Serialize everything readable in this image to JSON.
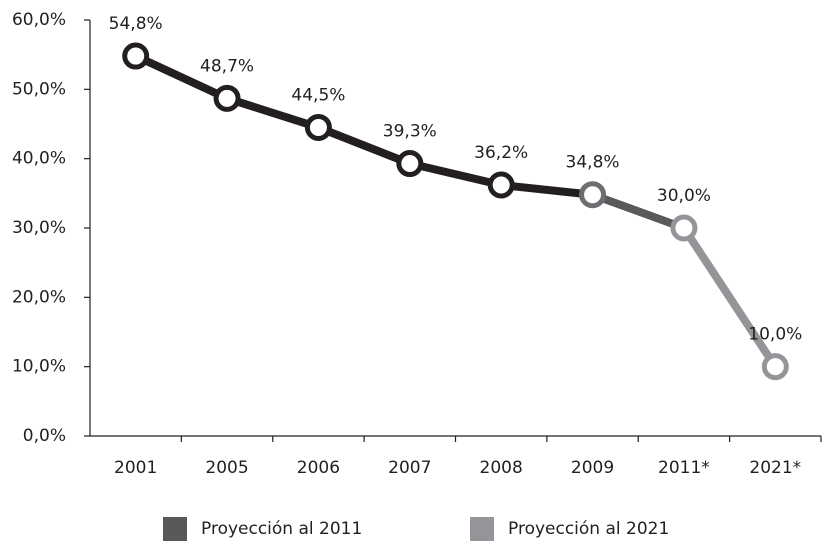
{
  "chart_data": {
    "type": "line",
    "categories": [
      "2001",
      "2005",
      "2006",
      "2007",
      "2008",
      "2009",
      "2011*",
      "2021*"
    ],
    "values": [
      54.8,
      48.7,
      44.5,
      39.3,
      36.2,
      34.8,
      30.0,
      10.0
    ],
    "value_labels": [
      "54,8%",
      "48,7%",
      "44,5%",
      "39,3%",
      "36,2%",
      "34,8%",
      "30,0%",
      "10,0%"
    ],
    "segment_colors": [
      "#231f20",
      "#231f20",
      "#231f20",
      "#231f20",
      "#231f20",
      "#58595b",
      "#939598"
    ],
    "marker_colors": [
      "#231f20",
      "#231f20",
      "#231f20",
      "#231f20",
      "#231f20",
      "#6d6e71",
      "#939598",
      "#939598"
    ],
    "legend": [
      {
        "name": "Proyección al 2011",
        "color": "#58595b"
      },
      {
        "name": "Proyección al 2021",
        "color": "#939598"
      }
    ],
    "ylim": [
      0,
      60
    ],
    "yticks": [
      {
        "value": 0,
        "label": "0,0%"
      },
      {
        "value": 10,
        "label": "10,0%"
      },
      {
        "value": 20,
        "label": "20,0%"
      },
      {
        "value": 30,
        "label": "30,0%"
      },
      {
        "value": 40,
        "label": "40,0%"
      },
      {
        "value": 50,
        "label": "50,0%"
      },
      {
        "value": 60,
        "label": "60,0%"
      }
    ]
  }
}
